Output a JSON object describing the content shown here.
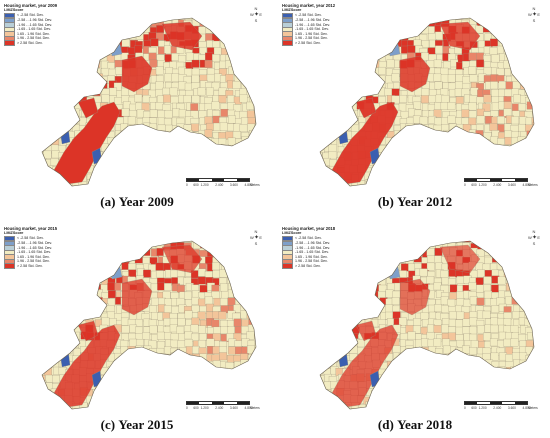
{
  "legend": {
    "title_prefix": "Housing market, year",
    "field": "LMiZScore",
    "classes": [
      {
        "label": "< -2.58 Std. Dev.",
        "color": "#3b5fb0"
      },
      {
        "label": "-2.58 - -1.96 Std. Dev.",
        "color": "#7d9fca"
      },
      {
        "label": "-1.96 - -1.65 Std. Dev.",
        "color": "#b9cfd8"
      },
      {
        "label": "-1.65 - 1.65 Std. Dev.",
        "color": "#f2ecc2"
      },
      {
        "label": "1.65 - 1.96 Std. Dev.",
        "color": "#f3c59a"
      },
      {
        "label": "1.96 - 2.58 Std. Dev.",
        "color": "#e8866a"
      },
      {
        "label": "> 2.58 Std. Dev.",
        "color": "#dc3427"
      }
    ]
  },
  "compass": {
    "n": "N",
    "s": "S",
    "e": "E",
    "w": "W"
  },
  "scale": {
    "ticks": [
      "0",
      "600",
      "1.200",
      "2.400",
      "3.600",
      "4.800"
    ],
    "unit": "Meters"
  },
  "panels": [
    {
      "year": "2009",
      "caption_letter": "(a)",
      "caption_text": "Year 2009"
    },
    {
      "year": "2012",
      "caption_letter": "(b)",
      "caption_text": "Year 2012"
    },
    {
      "year": "2015",
      "caption_letter": "(c)",
      "caption_text": "Year 2015"
    },
    {
      "year": "2018",
      "caption_letter": "(d)",
      "caption_text": "Year 2018"
    }
  ],
  "colors": {
    "background_fill": "#f2ecc2",
    "hot": "#dc3427",
    "warm": "#e8866a",
    "light_warm": "#f3c59a",
    "cold": "#3b5fb0",
    "cool": "#7d9fca",
    "boundary": "#9a8f7a"
  }
}
